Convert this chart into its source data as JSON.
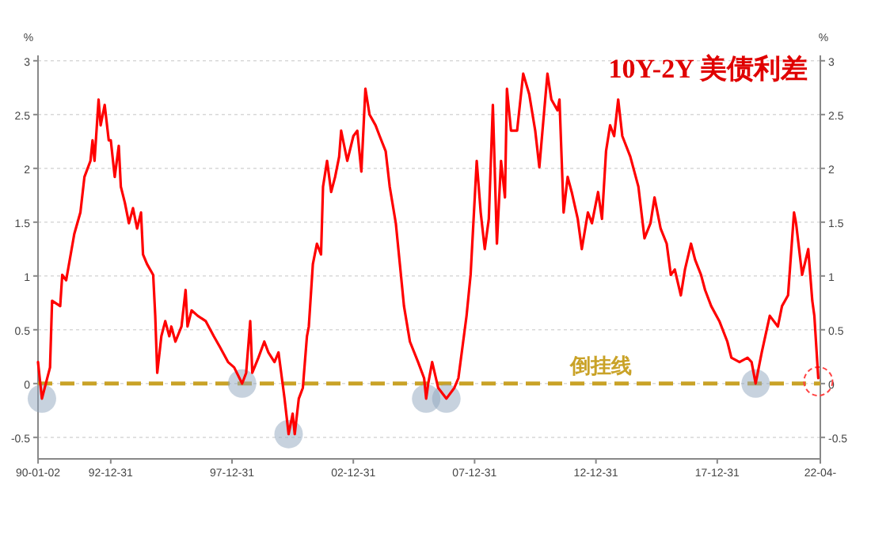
{
  "chart_data": {
    "type": "line",
    "title": "10Y-2Y 美债利差",
    "ylabel": "%",
    "y2label": "%",
    "x": [
      "1990-01",
      "1990-03",
      "1990-07",
      "1990-08",
      "1990-12",
      "1991-01",
      "1991-03",
      "1991-07",
      "1991-10",
      "1991-12",
      "1992-03",
      "1992-04",
      "1992-05",
      "1992-07",
      "1992-08",
      "1992-10",
      "1992-12",
      "1993-01",
      "1993-03",
      "1993-05",
      "1993-06",
      "1993-08",
      "1993-10",
      "1993-12",
      "1994-02",
      "1994-04",
      "1994-05",
      "1994-07",
      "1994-10",
      "1994-11",
      "1994-12",
      "1995-02",
      "1995-04",
      "1995-06",
      "1995-07",
      "1995-09",
      "1995-12",
      "1996-02",
      "1996-03",
      "1996-05",
      "1996-08",
      "1996-12",
      "1997-04",
      "1997-07",
      "1997-11",
      "1998-02",
      "1998-06",
      "1998-08",
      "1998-10",
      "1998-11",
      "1999-02",
      "1999-05",
      "1999-07",
      "1999-10",
      "1999-12",
      "2000-03",
      "2000-05",
      "2000-07",
      "2000-08",
      "2000-10",
      "2000-12",
      "2001-02",
      "2001-03",
      "2001-05",
      "2001-07",
      "2001-09",
      "2001-10",
      "2001-12",
      "2002-02",
      "2002-04",
      "2002-06",
      "2002-07",
      "2002-10",
      "2003-01",
      "2003-03",
      "2003-05",
      "2003-07",
      "2003-09",
      "2003-12",
      "2004-02",
      "2004-05",
      "2004-07",
      "2004-10",
      "2004-12",
      "2005-02",
      "2005-05",
      "2005-09",
      "2005-12",
      "2006-01",
      "2006-02",
      "2006-04",
      "2006-07",
      "2006-11",
      "2007-03",
      "2007-05",
      "2007-09",
      "2007-11",
      "2008-02",
      "2008-04",
      "2008-06",
      "2008-08",
      "2008-10",
      "2008-12",
      "2009-02",
      "2009-04",
      "2009-05",
      "2009-07",
      "2009-10",
      "2010-01",
      "2010-04",
      "2010-07",
      "2010-09",
      "2010-11",
      "2011-01",
      "2011-03",
      "2011-06",
      "2011-07",
      "2011-09",
      "2011-11",
      "2012-01",
      "2012-04",
      "2012-06",
      "2012-09",
      "2012-11",
      "2013-02",
      "2013-04",
      "2013-06",
      "2013-08",
      "2013-10",
      "2013-12",
      "2014-02",
      "2014-06",
      "2014-10",
      "2015-01",
      "2015-04",
      "2015-06",
      "2015-09",
      "2015-12",
      "2016-02",
      "2016-04",
      "2016-07",
      "2016-09",
      "2016-12",
      "2017-02",
      "2017-05",
      "2017-07",
      "2017-10",
      "2018-02",
      "2018-06",
      "2018-08",
      "2018-12",
      "2019-04",
      "2019-06",
      "2019-08",
      "2019-11",
      "2020-03",
      "2020-07",
      "2020-09",
      "2020-12",
      "2021-03",
      "2021-04",
      "2021-07",
      "2021-10",
      "2021-12",
      "2022-01",
      "2022-03"
    ],
    "series": [
      {
        "color": "#ff0000",
        "values": [
          0.2,
          -0.14,
          0.15,
          0.77,
          0.72,
          1.01,
          0.96,
          1.39,
          1.59,
          1.92,
          2.07,
          2.26,
          2.07,
          2.64,
          2.4,
          2.59,
          2.26,
          2.26,
          1.92,
          2.21,
          1.83,
          1.68,
          1.49,
          1.63,
          1.44,
          1.59,
          1.2,
          1.11,
          1.01,
          0.63,
          0.1,
          0.44,
          0.58,
          0.44,
          0.53,
          0.39,
          0.53,
          0.87,
          0.53,
          0.68,
          0.63,
          0.58,
          0.44,
          0.34,
          0.2,
          0.15,
          0.0,
          0.1,
          0.58,
          0.1,
          0.24,
          0.39,
          0.29,
          0.2,
          0.29,
          -0.14,
          -0.47,
          -0.28,
          -0.47,
          -0.14,
          -0.04,
          0.44,
          0.53,
          1.11,
          1.3,
          1.2,
          1.83,
          2.07,
          1.78,
          1.92,
          2.11,
          2.35,
          2.07,
          2.3,
          2.35,
          1.97,
          2.74,
          2.5,
          2.4,
          2.3,
          2.16,
          1.83,
          1.49,
          1.11,
          0.72,
          0.39,
          0.2,
          0.05,
          -0.14,
          0.0,
          0.2,
          -0.04,
          -0.14,
          -0.04,
          0.05,
          0.63,
          1.01,
          2.07,
          1.59,
          1.25,
          1.53,
          2.59,
          1.3,
          2.07,
          1.73,
          2.74,
          2.35,
          2.35,
          2.88,
          2.69,
          2.35,
          2.01,
          2.45,
          2.88,
          2.64,
          2.54,
          2.64,
          1.59,
          1.92,
          1.78,
          1.53,
          1.25,
          1.59,
          1.49,
          1.78,
          1.53,
          2.16,
          2.4,
          2.3,
          2.64,
          2.3,
          2.11,
          1.83,
          1.35,
          1.49,
          1.73,
          1.44,
          1.3,
          1.01,
          1.06,
          0.82,
          1.06,
          1.3,
          1.15,
          1.01,
          0.87,
          0.72,
          0.58,
          0.39,
          0.24,
          0.2,
          0.24,
          0.2,
          0.0,
          0.29,
          0.63,
          0.53,
          0.72,
          0.82,
          1.59,
          1.49,
          1.01,
          1.25,
          0.77,
          0.63,
          0.05
        ]
      }
    ],
    "xlim": [
      "1990-01-01",
      "2022-04-01"
    ],
    "xticks": [
      {
        "value": "1990-01-02",
        "label": "90-01-02"
      },
      {
        "value": "1992-12-31",
        "label": "92-12-31"
      },
      {
        "value": "1997-12-31",
        "label": "97-12-31"
      },
      {
        "value": "2002-12-31",
        "label": "02-12-31"
      },
      {
        "value": "2007-12-31",
        "label": "07-12-31"
      },
      {
        "value": "2012-12-31",
        "label": "12-12-31"
      },
      {
        "value": "2017-12-31",
        "label": "17-12-31"
      },
      {
        "value": "2022-04-01",
        "label": "22-04-"
      }
    ],
    "ylim": [
      -0.7,
      3.05
    ],
    "yticks": [
      -0.5,
      0,
      0.5,
      1,
      1.5,
      2,
      2.5,
      3
    ],
    "y2lim": [
      -0.7,
      3.05
    ],
    "y2ticks": [
      -0.5,
      0,
      0.5,
      1,
      1.5,
      2,
      2.5,
      3
    ],
    "ref_lines": [
      {
        "axis": "y",
        "value": 0,
        "label": "倒挂线",
        "color": "#c9a227",
        "line_style": "dashed"
      }
    ],
    "grid": "y",
    "marker": "none",
    "line_style": "solid"
  }
}
